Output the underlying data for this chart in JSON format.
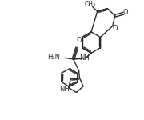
{
  "bg": "#ffffff",
  "lc": "#2a2a2a",
  "lw": 1.0,
  "fs": 6.0,
  "fs_small": 5.5,
  "xlim": [
    0,
    10
  ],
  "ylim": [
    0,
    10
  ]
}
